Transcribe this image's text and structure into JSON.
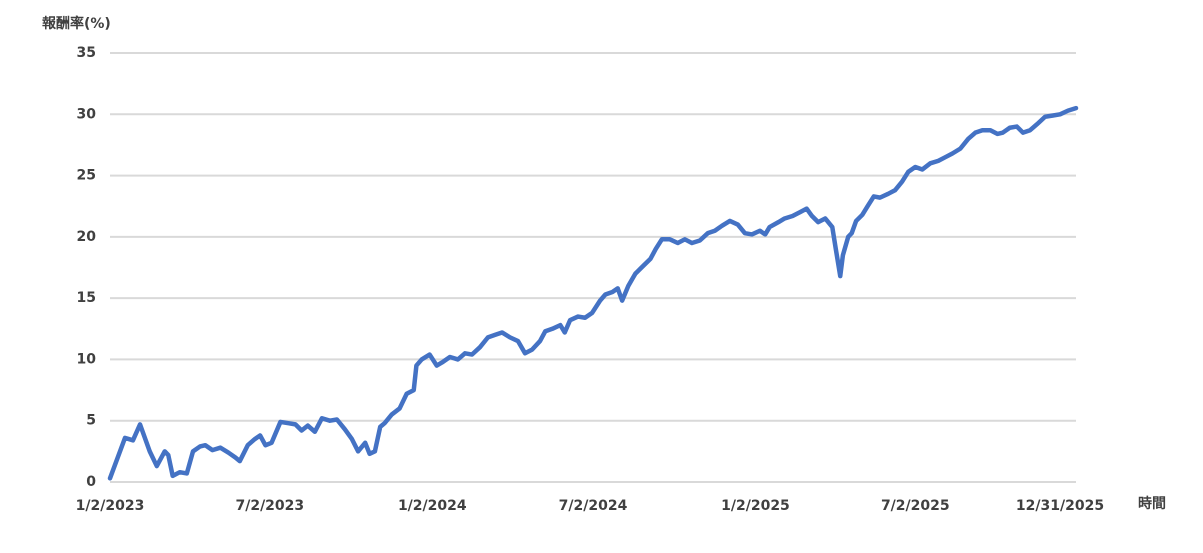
{
  "chart_data": {
    "type": "line",
    "y_label": "報酬率(%)",
    "x_label": "時間",
    "x": [
      "1/2/2023",
      "1/19/2023",
      "1/28/2023",
      "2/5/2023",
      "2/11/2023",
      "2/16/2023",
      "2/24/2023",
      "3/5/2023",
      "3/9/2023",
      "3/14/2023",
      "3/22/2023",
      "3/30/2023",
      "4/6/2023",
      "4/14/2023",
      "4/20/2023",
      "4/28/2023",
      "5/7/2023",
      "5/16/2023",
      "5/24/2023",
      "5/29/2023",
      "6/7/2023",
      "6/15/2023",
      "6/21/2023",
      "6/27/2023",
      "7/4/2023",
      "7/14/2023",
      "7/23/2023",
      "7/31/2023",
      "8/7/2023",
      "8/14/2023",
      "8/22/2023",
      "8/30/2023",
      "9/8/2023",
      "9/16/2023",
      "9/25/2023",
      "10/3/2023",
      "10/10/2023",
      "10/18/2023",
      "10/23/2023",
      "10/29/2023",
      "11/4/2023",
      "11/9/2023",
      "11/17/2023",
      "11/26/2023",
      "12/4/2023",
      "12/12/2023",
      "12/15/2023",
      "12/21/2023",
      "12/30/2023",
      "1/7/2024",
      "1/14/2024",
      "1/22/2024",
      "1/31/2024",
      "2/8/2024",
      "2/16/2024",
      "2/25/2024",
      "3/5/2024",
      "3/13/2024",
      "3/21/2024",
      "3/30/2024",
      "4/8/2024",
      "4/16/2024",
      "4/24/2024",
      "5/3/2024",
      "5/9/2024",
      "5/17/2024",
      "5/26/2024",
      "5/31/2024",
      "6/6/2024",
      "6/15/2024",
      "6/23/2024",
      "7/1/2024",
      "7/10/2024",
      "7/16/2024",
      "7/24/2024",
      "7/30/2024",
      "8/4/2024",
      "8/11/2024",
      "8/19/2024",
      "8/26/2024",
      "9/5/2024",
      "9/11/2024",
      "9/18/2024",
      "9/27/2024",
      "10/6/2024",
      "10/14/2024",
      "10/22/2024",
      "10/31/2024",
      "11/9/2024",
      "11/17/2024",
      "11/25/2024",
      "12/4/2024",
      "12/13/2024",
      "12/21/2024",
      "12/29/2024",
      "1/7/2025",
      "1/13/2025",
      "1/18/2025",
      "1/28/2025",
      "2/4/2025",
      "2/13/2025",
      "2/21/2025",
      "3/1/2025",
      "3/7/2025",
      "3/14/2025",
      "3/22/2025",
      "3/30/2025",
      "4/3/2025",
      "4/8/2025",
      "4/11/2025",
      "4/17/2025",
      "4/21/2025",
      "4/26/2025",
      "5/3/2025",
      "5/9/2025",
      "5/16/2025",
      "5/23/2025",
      "6/1/2025",
      "6/9/2025",
      "6/17/2025",
      "6/24/2025",
      "7/2/2025",
      "7/10/2025",
      "7/19/2025",
      "7/28/2025",
      "8/5/2025",
      "8/13/2025",
      "8/22/2025",
      "8/31/2025",
      "9/8/2025",
      "9/16/2025",
      "9/25/2025",
      "10/3/2025",
      "10/9/2025",
      "10/17/2025",
      "10/25/2025",
      "11/1/2025",
      "11/9/2025",
      "11/17/2025",
      "11/26/2025",
      "12/5/2025",
      "12/13/2025",
      "12/22/2025",
      "12/31/2025"
    ],
    "series": [
      {
        "color": "#4472c4",
        "values": [
          0.3,
          3.6,
          3.4,
          4.7,
          3.5,
          2.5,
          1.3,
          2.5,
          2.2,
          0.5,
          0.8,
          0.7,
          2.5,
          2.9,
          3.0,
          2.6,
          2.8,
          2.4,
          2.0,
          1.7,
          3.0,
          3.5,
          3.8,
          3.0,
          3.2,
          4.9,
          4.8,
          4.7,
          4.2,
          4.6,
          4.1,
          5.2,
          5.0,
          5.1,
          4.3,
          3.5,
          2.5,
          3.2,
          2.3,
          2.5,
          4.5,
          4.8,
          5.5,
          6.0,
          7.2,
          7.5,
          9.5,
          10.0,
          10.4,
          9.5,
          9.8,
          10.2,
          10.0,
          10.5,
          10.4,
          11.0,
          11.8,
          12.0,
          12.2,
          11.8,
          11.5,
          10.5,
          10.8,
          11.5,
          12.3,
          12.5,
          12.8,
          12.2,
          13.2,
          13.5,
          13.4,
          13.8,
          14.8,
          15.3,
          15.5,
          15.8,
          14.8,
          16.0,
          17.0,
          17.5,
          18.2,
          19.0,
          19.8,
          19.8,
          19.5,
          19.8,
          19.5,
          19.7,
          20.3,
          20.5,
          20.9,
          21.3,
          21.0,
          20.3,
          20.2,
          20.5,
          20.2,
          20.8,
          21.2,
          21.5,
          21.7,
          22.0,
          22.3,
          21.7,
          21.2,
          21.5,
          20.8,
          19.0,
          16.8,
          18.5,
          20.0,
          20.3,
          21.3,
          21.8,
          22.5,
          23.3,
          23.2,
          23.5,
          23.8,
          24.5,
          25.3,
          25.7,
          25.5,
          26.0,
          26.2,
          26.5,
          26.8,
          27.2,
          28.0,
          28.5,
          28.7,
          28.7,
          28.4,
          28.5,
          28.9,
          29.0,
          28.5,
          28.7,
          29.2,
          29.8,
          29.9,
          30.0,
          30.3,
          30.5
        ]
      }
    ],
    "xlim": [
      "1/2/2023",
      "12/31/2025"
    ],
    "xticks": [
      "1/2/2023",
      "7/2/2023",
      "1/2/2024",
      "7/2/2024",
      "1/2/2025",
      "7/2/2025",
      "12/31/2025"
    ],
    "ylim": [
      0,
      35
    ],
    "yticks": [
      0,
      5,
      10,
      15,
      20,
      25,
      30,
      35
    ],
    "grid": true
  }
}
